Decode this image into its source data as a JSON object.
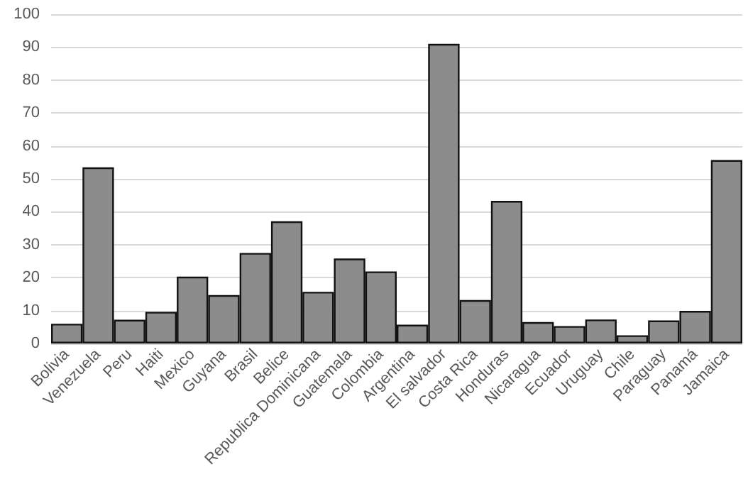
{
  "chart_data": {
    "type": "bar",
    "categories": [
      "Bolivia",
      "Venezuela",
      "Peru",
      "Haiti",
      "Mexico",
      "Guyana",
      "Brasil",
      "Belice",
      "Republica Dominicana",
      "Guatemala",
      "Colombia",
      "Argentina",
      "El salvador",
      "Costa Rica",
      "Honduras",
      "Nicaragua",
      "Ecuador",
      "Uruguay",
      "Chile",
      "Paraguay",
      "Panamá",
      "Jamaica"
    ],
    "values": [
      6,
      53.5,
      7.2,
      9.6,
      20.3,
      14.7,
      27.5,
      37.1,
      15.7,
      25.8,
      21.9,
      5.7,
      91,
      13.2,
      43.3,
      6.5,
      5.3,
      7.3,
      2.5,
      7,
      9.9,
      55.7
    ],
    "color": "#8c8c8c",
    "ylim": [
      0,
      100
    ],
    "yticks": [
      0,
      10,
      20,
      30,
      40,
      50,
      60,
      70,
      80,
      90,
      100
    ],
    "grid": "y"
  }
}
